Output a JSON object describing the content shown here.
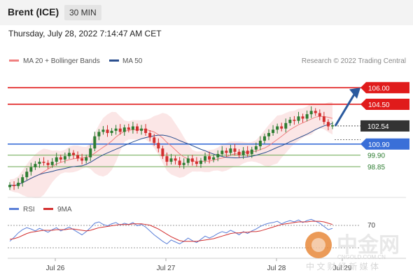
{
  "header": {
    "symbol": "Brent (ICE)",
    "timeframe": "30 MIN"
  },
  "timestamp": "Thursday, July 28, 2022 7:14:47 AM CET",
  "legend": {
    "item1": "MA 20 + Bollinger Bands",
    "item2": "MA 50",
    "credit": "Research © 2022 Trading Central"
  },
  "rsi_legend": {
    "item1": "RSI",
    "item2": "9MA"
  },
  "watermark": {
    "cn": "中金网",
    "url": "CNGOLD.COM.CN",
    "sub": "中 文 财 经 新 媒 体"
  },
  "colors": {
    "price_up": "#2e7d32",
    "price_down": "#d32f2f",
    "resistance": "#e01b1b",
    "support": "#3a6fd8",
    "support_minor": "#6aa84f",
    "ma20": "#f08080",
    "ma50": "#2b4f8e",
    "band": "#f9dede",
    "rsi": "#5a7fd8",
    "rsi_ma": "#d32f2f"
  },
  "chart_data": {
    "type": "candlestick",
    "x_ticks": [
      "Jul 26",
      "Jul 27",
      "Jul 28",
      "Jul 29"
    ],
    "y_range": [
      96.2,
      107.6
    ],
    "current_price": 102.54,
    "levels": [
      {
        "label": "106.00",
        "value": 106.0,
        "kind": "resistance"
      },
      {
        "label": "104.50",
        "value": 104.5,
        "kind": "resistance"
      },
      {
        "label": "102.54",
        "value": 102.54,
        "kind": "current"
      },
      {
        "label": "100.90",
        "value": 100.9,
        "kind": "support"
      },
      {
        "label": "99.90",
        "value": 99.9,
        "kind": "support_minor"
      },
      {
        "label": "98.85",
        "value": 98.85,
        "kind": "support_minor"
      }
    ],
    "close": [
      97.2,
      97.1,
      97.4,
      97.9,
      98.4,
      98.8,
      99.1,
      99.3,
      99.2,
      99.0,
      99.3,
      99.7,
      99.5,
      99.8,
      100.1,
      99.9,
      99.6,
      99.4,
      99.7,
      100.5,
      101.6,
      102.0,
      102.2,
      101.9,
      102.1,
      102.3,
      102.0,
      102.4,
      102.2,
      102.5,
      102.1,
      102.3,
      101.9,
      101.5,
      101.0,
      100.5,
      99.8,
      99.3,
      99.6,
      99.4,
      99.0,
      99.2,
      99.6,
      99.3,
      99.1,
      99.4,
      99.8,
      99.5,
      99.7,
      100.0,
      100.3,
      100.1,
      100.5,
      100.2,
      99.9,
      100.3,
      100.0,
      100.4,
      100.7,
      101.2,
      101.6,
      101.9,
      102.2,
      102.5,
      102.3,
      102.8,
      103.1,
      103.0,
      103.4,
      103.2,
      103.6,
      103.9,
      103.7,
      103.4,
      102.9,
      102.5,
      102.6
    ],
    "rsi_value_label": "70",
    "rsi": [
      42,
      48,
      55,
      60,
      63,
      61,
      58,
      62,
      59,
      56,
      60,
      63,
      58,
      61,
      64,
      60,
      56,
      52,
      57,
      63,
      70,
      72,
      68,
      66,
      69,
      71,
      67,
      70,
      68,
      71,
      66,
      68,
      64,
      58,
      52,
      47,
      42,
      38,
      44,
      41,
      38,
      42,
      47,
      43,
      40,
      45,
      50,
      47,
      50,
      54,
      57,
      55,
      59,
      56,
      52,
      57,
      54,
      58,
      61,
      65,
      68,
      70,
      71,
      73,
      69,
      72,
      74,
      72,
      75,
      71,
      74,
      76,
      73,
      70,
      65,
      60,
      62
    ],
    "rsi_ma": [
      45,
      46,
      48,
      51,
      54,
      56,
      57,
      58,
      59,
      59,
      59,
      60,
      60,
      60,
      61,
      61,
      60,
      59,
      58,
      59,
      61,
      63,
      64,
      65,
      66,
      67,
      68,
      68,
      68,
      69,
      69,
      69,
      68,
      67,
      64,
      61,
      57,
      53,
      49,
      46,
      43,
      42,
      42,
      42,
      42,
      43,
      44,
      45,
      46,
      48,
      50,
      52,
      54,
      55,
      55,
      56,
      56,
      57,
      57,
      58,
      60,
      62,
      64,
      66,
      68,
      69,
      70,
      71,
      72,
      72,
      72,
      73,
      73,
      73,
      72,
      70,
      68
    ],
    "rsi_range": [
      20,
      85
    ]
  }
}
